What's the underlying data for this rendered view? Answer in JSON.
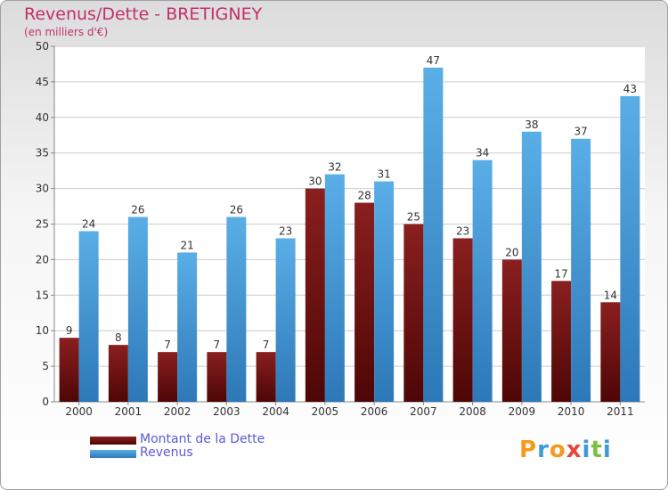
{
  "title": "Revenus/Dette - BRETIGNEY",
  "subtitle": "(en milliers d'€)",
  "logo": {
    "text": "Proxiti",
    "letters": [
      {
        "ch": "P",
        "color": "#f59a1e"
      },
      {
        "ch": "r",
        "color": "#3e9bd6"
      },
      {
        "ch": "o",
        "color": "#f59a1e"
      },
      {
        "ch": "x",
        "color": "#e8453c"
      },
      {
        "ch": "i",
        "color": "#3e9bd6"
      },
      {
        "ch": "t",
        "color": "#7cc242"
      },
      {
        "ch": "i",
        "color": "#3e9bd6"
      }
    ]
  },
  "colors": {
    "debt": "#8a1f1f",
    "debt_dark": "#4e0606",
    "revenue": "#5aaee6",
    "revenue_dark": "#2d78b8",
    "axis_text": "#333333",
    "grid": "#cccccc"
  },
  "chart_data": {
    "type": "bar",
    "title": "Revenus/Dette - BRETIGNEY",
    "subtitle": "(en milliers d'€)",
    "categories": [
      "2000",
      "2001",
      "2002",
      "2003",
      "2004",
      "2005",
      "2006",
      "2007",
      "2008",
      "2009",
      "2010",
      "2011"
    ],
    "series": [
      {
        "name": "Montant de la Dette",
        "values": [
          9,
          8,
          7,
          7,
          7,
          30,
          28,
          25,
          23,
          20,
          17,
          14
        ]
      },
      {
        "name": "Revenus",
        "values": [
          24,
          26,
          21,
          26,
          23,
          32,
          31,
          47,
          34,
          38,
          37,
          43
        ]
      }
    ],
    "ylim": [
      0,
      50
    ],
    "yticks": [
      0,
      5,
      10,
      15,
      20,
      25,
      30,
      35,
      40,
      45,
      50
    ],
    "grid": true,
    "legend_position": "bottom-left"
  }
}
